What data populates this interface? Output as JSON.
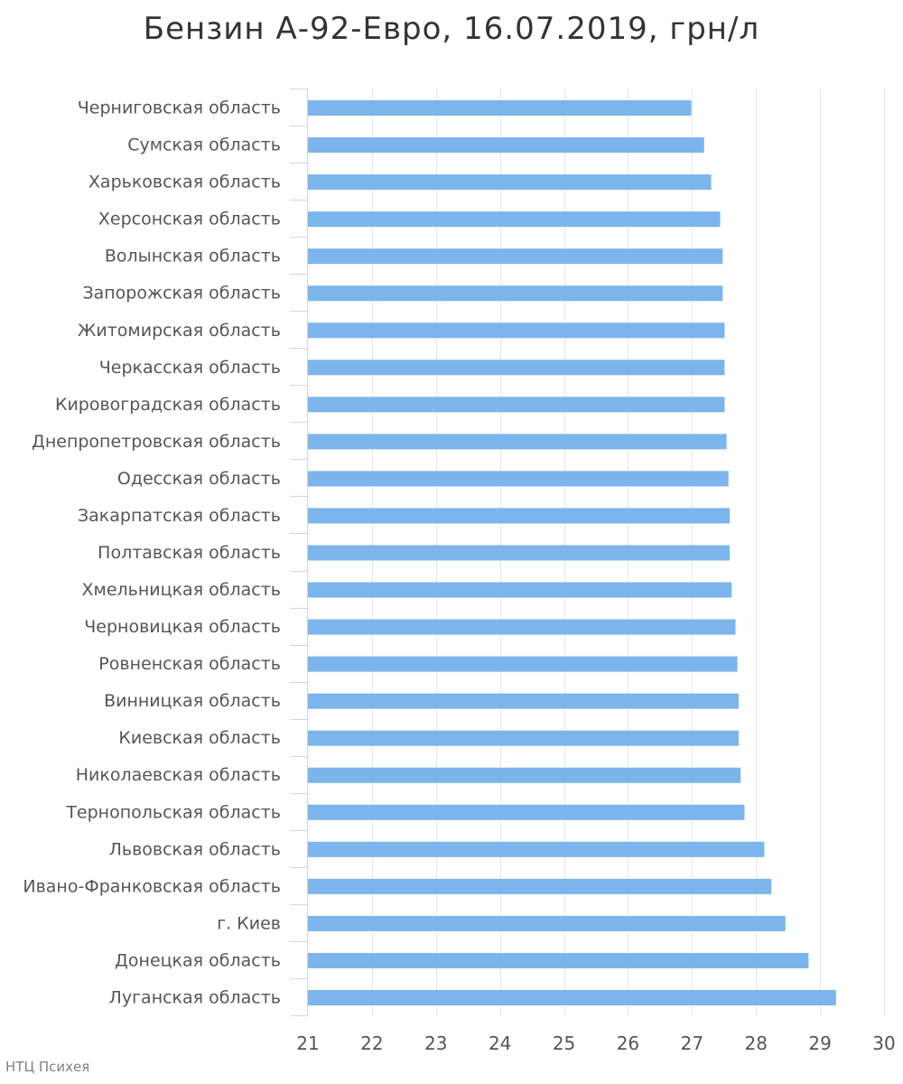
{
  "chart_data": {
    "type": "bar",
    "orientation": "horizontal",
    "title": "Бензин А-92-Евро, 16.07.2019, грн/л",
    "categories": [
      "Черниговская область",
      "Сумская область",
      "Харьковская область",
      "Херсонская область",
      "Волынская область",
      "Запорожская область",
      "Житомирская область",
      "Черкасская область",
      "Кировоградская область",
      "Днепропетровская область",
      "Одесская область",
      "Закарпатская область",
      "Полтавская область",
      "Хмельницкая область",
      "Черновицкая область",
      "Ровненская область",
      "Винницкая область",
      "Киевская область",
      "Николаевская область",
      "Тернопольская область",
      "Львовская область",
      "Ивано-Франковская область",
      "г. Киев",
      "Донецкая область",
      "Луганская область"
    ],
    "values": [
      26.99,
      27.19,
      27.3,
      27.44,
      27.48,
      27.48,
      27.51,
      27.51,
      27.51,
      27.54,
      27.57,
      27.59,
      27.59,
      27.62,
      27.68,
      27.71,
      27.73,
      27.73,
      27.76,
      27.82,
      28.13,
      28.24,
      28.46,
      28.82,
      29.25
    ],
    "xlim": [
      21,
      30
    ],
    "xticks": [
      "21",
      "22",
      "23",
      "24",
      "25",
      "26",
      "27",
      "28",
      "29",
      "30"
    ],
    "grid": true,
    "legend": "none",
    "bar_color": "#7cb5ec",
    "grid_color": "#e6e6e6",
    "axis_color": "#ccd6eb",
    "credit": "НТЦ Психея"
  }
}
